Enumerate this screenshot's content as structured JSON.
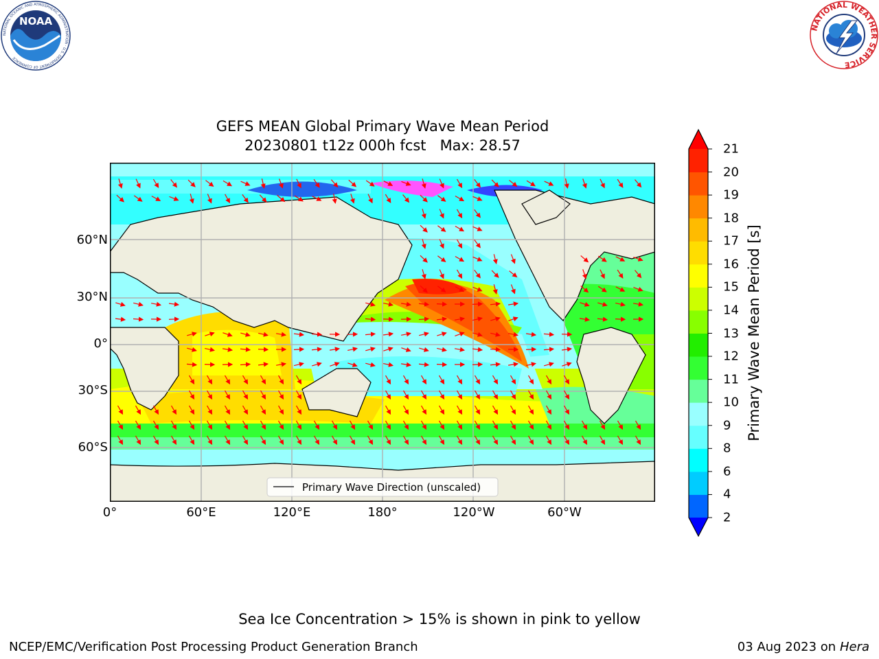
{
  "header": {
    "title_line1": "GEFS MEAN Global Primary Wave Mean Period",
    "title_line2": "20230801 t12z 000h fcst   Max: 28.57"
  },
  "logos": {
    "noaa": {
      "text": "NOAA",
      "ring_text": "NATIONAL OCEANIC AND ATMOSPHERIC ADMINISTRATION · U.S. DEPARTMENT OF COMMERCE"
    },
    "nws": {
      "ring_text": "NATIONAL WEATHER SERVICE"
    }
  },
  "map": {
    "lat_labels": [
      "60°N",
      "30°N",
      "0°",
      "30°S",
      "60°S"
    ],
    "lon_labels": [
      "0°",
      "60°E",
      "120°E",
      "180°",
      "120°W",
      "60°W"
    ],
    "legend_label": "Primary Wave Direction (unscaled)",
    "land_color": "#efeedf",
    "grid_color": "#b0b0b0",
    "arrow_color": "#ff0000"
  },
  "colorbar": {
    "label": "Primary Wave Mean Period [s]",
    "ticks": [
      "2",
      "4",
      "6",
      "8",
      "9",
      "10",
      "11",
      "12",
      "13",
      "14",
      "15",
      "16",
      "17",
      "18",
      "19",
      "20",
      "21"
    ],
    "colors": [
      "#0000ff",
      "#0066ff",
      "#00ccff",
      "#00ffff",
      "#66ffff",
      "#99ffff",
      "#66ff99",
      "#33ff33",
      "#22ee00",
      "#88ff00",
      "#ccff00",
      "#ffff00",
      "#ffdd00",
      "#ffbb00",
      "#ff8800",
      "#ff5500",
      "#ff2200",
      "#ff0000"
    ]
  },
  "footer": {
    "ice_note": "Sea Ice Concentration > 15% is shown in pink to yellow",
    "credit": "NCEP/EMC/Verification Post Processing Product Generation Branch",
    "date": "03 Aug 2023 on",
    "machine": "Hera"
  }
}
